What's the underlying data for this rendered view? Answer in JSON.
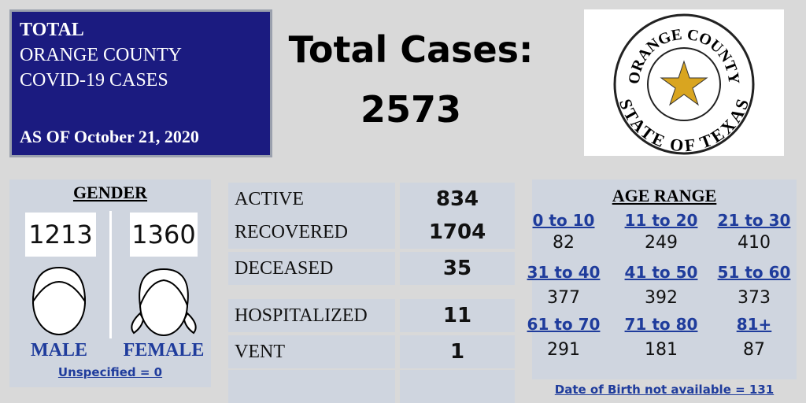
{
  "header": {
    "lines": [
      "TOTAL",
      "ORANGE COUNTY",
      "COVID-19 CASES"
    ],
    "as_of": "AS OF October 21, 2020"
  },
  "total": {
    "label": "Total Cases:",
    "value": 2573
  },
  "seal": {
    "top": "ORANGE COUNTY",
    "bottom": "STATE OF TEXAS"
  },
  "gender": {
    "title": "GENDER",
    "male": {
      "count": 1213,
      "label": "MALE"
    },
    "female": {
      "count": 1360,
      "label": "FEMALE"
    },
    "note": "Unspecified = 0"
  },
  "status": {
    "rows": [
      [
        "ACTIVE",
        834
      ],
      [
        "RECOVERED",
        1704
      ],
      [
        "DECEASED",
        35
      ]
    ]
  },
  "care": {
    "rows": [
      [
        "HOSPITALIZED",
        11
      ],
      [
        "VENT",
        1
      ]
    ]
  },
  "age": {
    "title": "AGE RANGE",
    "groups": [
      {
        "range": "0 to 10",
        "count": 82
      },
      {
        "range": "11 to 20",
        "count": 249
      },
      {
        "range": "21 to 30",
        "count": 410
      },
      {
        "range": "31 to 40",
        "count": 377
      },
      {
        "range": "41 to 50",
        "count": 392
      },
      {
        "range": "51 to 60",
        "count": 373
      },
      {
        "range": "61 to 70",
        "count": 291
      },
      {
        "range": "71 to 80",
        "count": 181
      },
      {
        "range": "81+",
        "count": 87
      }
    ],
    "note": "Date of Birth not available = 131"
  }
}
